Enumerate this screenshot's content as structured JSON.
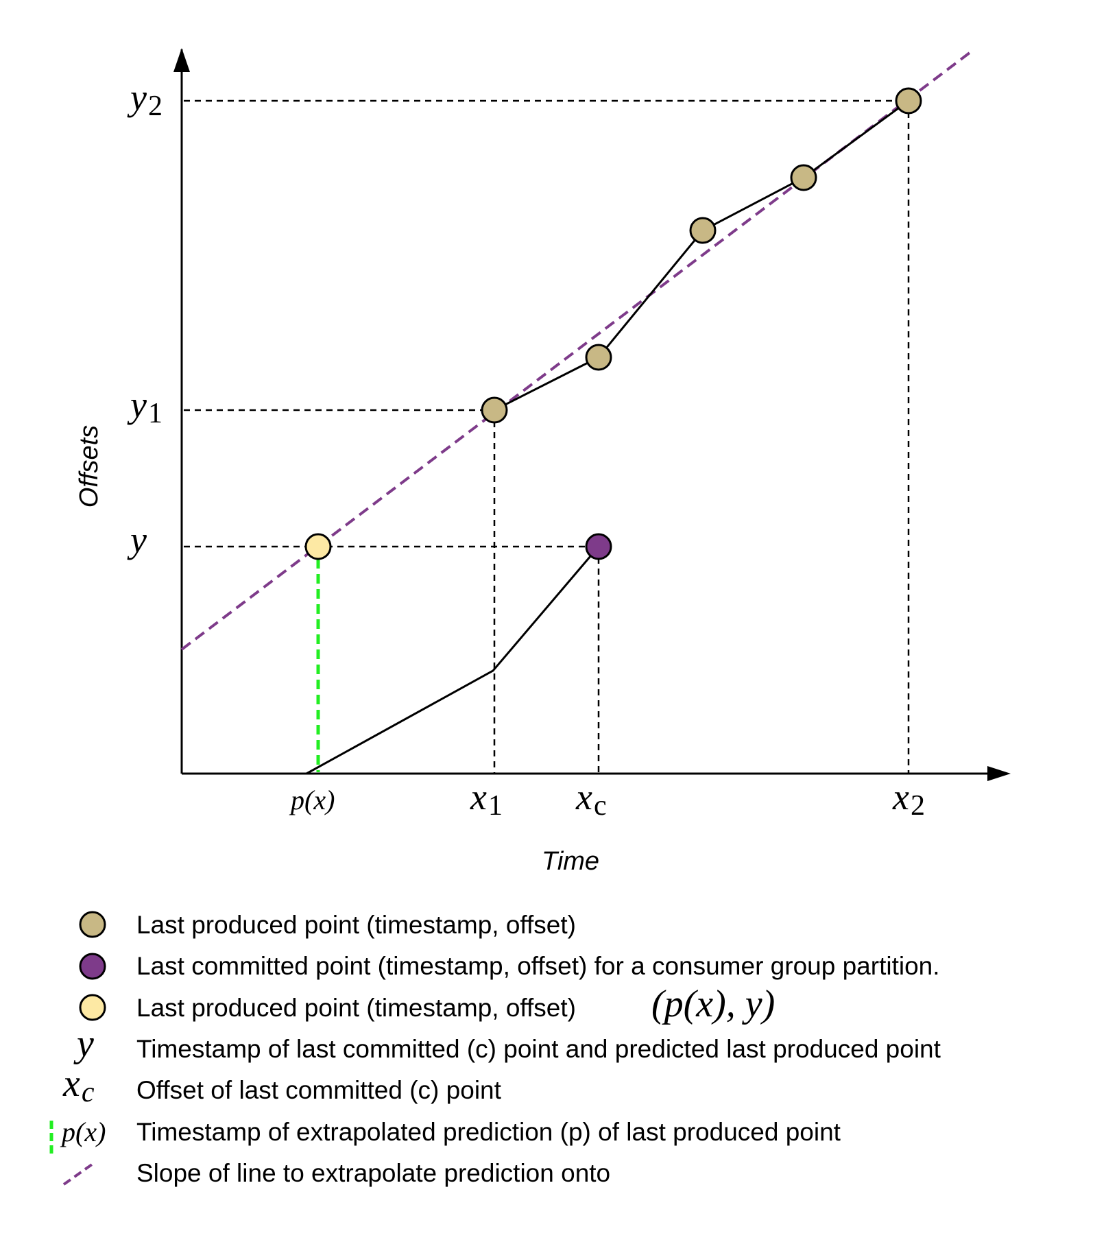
{
  "axes": {
    "x_title": "Time",
    "y_title": "Offsets"
  },
  "y_labels": {
    "y2": {
      "base": "y",
      "sub": "2"
    },
    "y1": {
      "base": "y",
      "sub": "1"
    },
    "y": {
      "base": "y",
      "sub": ""
    }
  },
  "x_labels": {
    "px": "p(x)",
    "x1": {
      "base": "x",
      "sub": "1"
    },
    "xc": {
      "base": "x",
      "sub": "c"
    },
    "x2": {
      "base": "x",
      "sub": "2"
    }
  },
  "colors": {
    "produced": "#c8b885",
    "committed": "#7e3b8a",
    "predicted": "#fde9a4",
    "slope_line": "#7e3b8a",
    "prediction_drop": "#22ee22",
    "guide": "#000000"
  },
  "legend": [
    {
      "marker": "produced-dot",
      "text": "Last produced point (timestamp, offset)",
      "extra": ""
    },
    {
      "marker": "committed-dot",
      "text": "Last committed point (timestamp, offset) for a consumer group partition.",
      "extra": ""
    },
    {
      "marker": "predicted-dot",
      "text": "Last produced point (timestamp, offset)",
      "extra": "(p(x), y)"
    },
    {
      "marker": "y-symbol",
      "symbol": "y",
      "text": "Timestamp of last committed (c) point and predicted last produced point",
      "extra": ""
    },
    {
      "marker": "xc-symbol",
      "symbol": "x",
      "symbol_sub": "c",
      "text": "Offset of last committed (c) point",
      "extra": ""
    },
    {
      "marker": "px-symbol",
      "symbol": "p(x)",
      "text": "Timestamp of extrapolated prediction (p) of last produced point",
      "extra": ""
    },
    {
      "marker": "slope-symbol",
      "text": "Slope of line to extrapolate prediction onto",
      "extra": ""
    }
  ]
}
